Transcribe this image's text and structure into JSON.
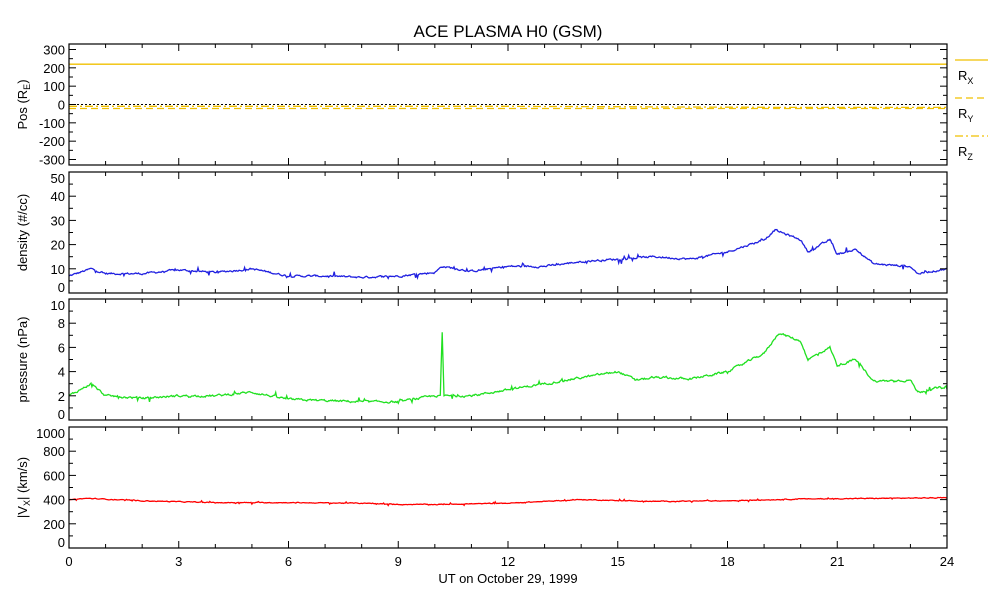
{
  "chart_data": {
    "type": "line",
    "title": "ACE PLASMA H0 (GSM)",
    "xlabel": "UT on October 29, 1999",
    "xlim": [
      0,
      24
    ],
    "xticks": [
      0,
      3,
      6,
      9,
      12,
      15,
      18,
      21,
      24
    ],
    "panels": [
      {
        "name": "position",
        "ylabel": "Pos (R",
        "ylabel_sub": "E",
        "ylabel_end": ")",
        "ylim": [
          -330,
          330
        ],
        "yticks": [
          -300,
          -200,
          -100,
          0,
          100,
          200,
          300
        ],
        "zero_line": true,
        "legend": [
          {
            "label": "R",
            "sub": "X",
            "dash": "solid"
          },
          {
            "label": "R",
            "sub": "Y",
            "dash": "dashed"
          },
          {
            "label": "R",
            "sub": "Z",
            "dash": "dashdot"
          }
        ],
        "series": [
          {
            "name": "Rx",
            "color": "#f0c000",
            "dash": "solid",
            "noise": 0,
            "x": [
              0,
              24
            ],
            "y": [
              220,
              220
            ]
          },
          {
            "name": "Ry",
            "color": "#f0c000",
            "dash": "dashed",
            "noise": 0,
            "x": [
              0,
              24
            ],
            "y": [
              -22,
              -22
            ]
          },
          {
            "name": "Rz",
            "color": "#f0c000",
            "dash": "dashdot",
            "noise": 0,
            "x": [
              0,
              12,
              20,
              24
            ],
            "y": [
              -10,
              -10,
              -16,
              -16
            ]
          }
        ]
      },
      {
        "name": "density",
        "ylabel": "density (#/cc)",
        "ylim": [
          0,
          50
        ],
        "yticks": [
          0,
          10,
          20,
          30,
          40,
          50
        ],
        "series": [
          {
            "name": "density",
            "color": "#2020e0",
            "dash": "solid",
            "noise": 0.8,
            "x": [
              0,
              0.6,
              1,
              2,
              3,
              4,
              5,
              6,
              7,
              8,
              9,
              10,
              10.2,
              11,
              12,
              13,
              14,
              15,
              16,
              17,
              18,
              19,
              19.3,
              20,
              20.2,
              20.8,
              21,
              21.5,
              22,
              23,
              23.2,
              24
            ],
            "y": [
              7,
              10,
              8,
              8,
              9.5,
              8.5,
              10,
              7,
              7,
              6.5,
              7,
              8.5,
              11,
              9,
              11,
              11,
              13,
              14,
              15,
              14,
              17,
              22,
              26,
              22,
              17,
              22,
              16,
              18,
              12,
              11,
              8,
              10
            ]
          }
        ]
      },
      {
        "name": "pressure",
        "ylabel": "pressure (nPa)",
        "ylim": [
          0,
          10
        ],
        "yticks": [
          0,
          2,
          4,
          6,
          8,
          10
        ],
        "series": [
          {
            "name": "pressure",
            "color": "#20e020",
            "dash": "solid",
            "noise": 0.18,
            "x": [
              0,
              0.6,
              1,
              2,
              3,
              4,
              5,
              6,
              7,
              8,
              9,
              10,
              10.15,
              10.2,
              10.25,
              11,
              12,
              13,
              14,
              15,
              15.5,
              16,
              17,
              18,
              19,
              19.4,
              20,
              20.2,
              20.8,
              21,
              21.5,
              22,
              23,
              23.2,
              24
            ],
            "y": [
              2,
              3,
              2,
              1.8,
              2,
              2,
              2.3,
              1.7,
              1.6,
              1.5,
              1.5,
              2,
              2,
              7.2,
              2,
              2,
              2.5,
              3,
              3.5,
              4,
              3.3,
              3.5,
              3.4,
              4,
              5.5,
              7.2,
              6.5,
              5,
              6,
              4.5,
              5,
              3.2,
              3.3,
              2.3,
              2.8
            ]
          }
        ]
      },
      {
        "name": "velocity",
        "ylabel": "|V",
        "ylabel_sub": "X",
        "ylabel_end": "| (km/s)",
        "ylim": [
          0,
          1000
        ],
        "yticks": [
          0,
          200,
          400,
          600,
          800,
          1000
        ],
        "series": [
          {
            "name": "Vx",
            "color": "#ff0000",
            "dash": "solid",
            "noise": 6,
            "x": [
              0,
              0.5,
              2,
              4,
              6,
              8,
              9,
              10,
              12,
              14,
              16,
              18,
              20,
              22,
              24
            ],
            "y": [
              400,
              410,
              390,
              375,
              375,
              370,
              360,
              360,
              370,
              400,
              385,
              390,
              405,
              410,
              415
            ]
          }
        ]
      }
    ]
  }
}
